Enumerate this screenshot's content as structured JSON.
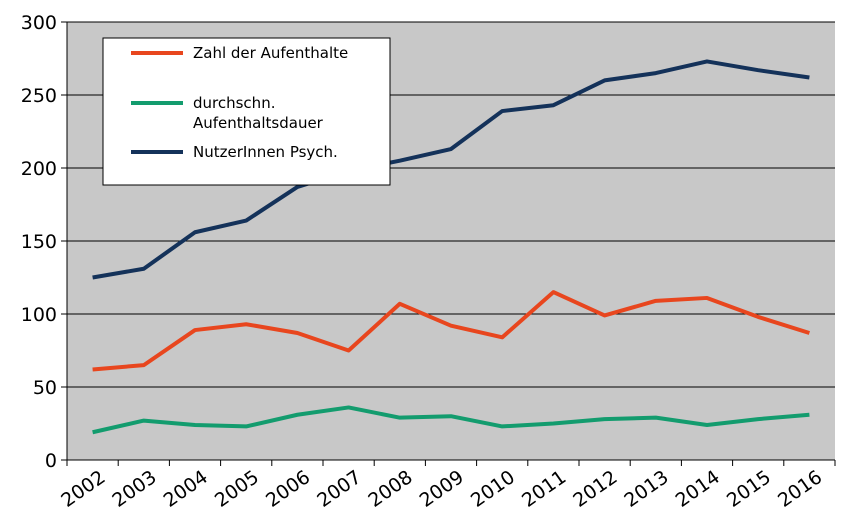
{
  "chart_data": {
    "type": "line",
    "categories": [
      "2002",
      "2003",
      "2004",
      "2005",
      "2006",
      "2007",
      "2008",
      "2009",
      "2010",
      "2011",
      "2012",
      "2013",
      "2014",
      "2015",
      "2016"
    ],
    "series": [
      {
        "name": "Zahl der Aufenthalte",
        "color": "#e8461e",
        "values": [
          62,
          65,
          89,
          93,
          87,
          75,
          107,
          92,
          84,
          115,
          99,
          109,
          111,
          98,
          87
        ]
      },
      {
        "name": "durchschn. Aufenthaltsdauer",
        "color": "#139c6e",
        "values": [
          19,
          27,
          24,
          23,
          31,
          36,
          29,
          30,
          23,
          25,
          28,
          29,
          24,
          28,
          31
        ]
      },
      {
        "name": "NutzerInnen Psych.",
        "color": "#14325a",
        "values": [
          125,
          131,
          156,
          164,
          187,
          198,
          205,
          213,
          239,
          243,
          260,
          265,
          273,
          267,
          262
        ]
      }
    ],
    "ylim": [
      0,
      300
    ],
    "yticks": [
      0,
      50,
      100,
      150,
      200,
      250,
      300
    ],
    "grid": true,
    "legend": "upper left"
  }
}
